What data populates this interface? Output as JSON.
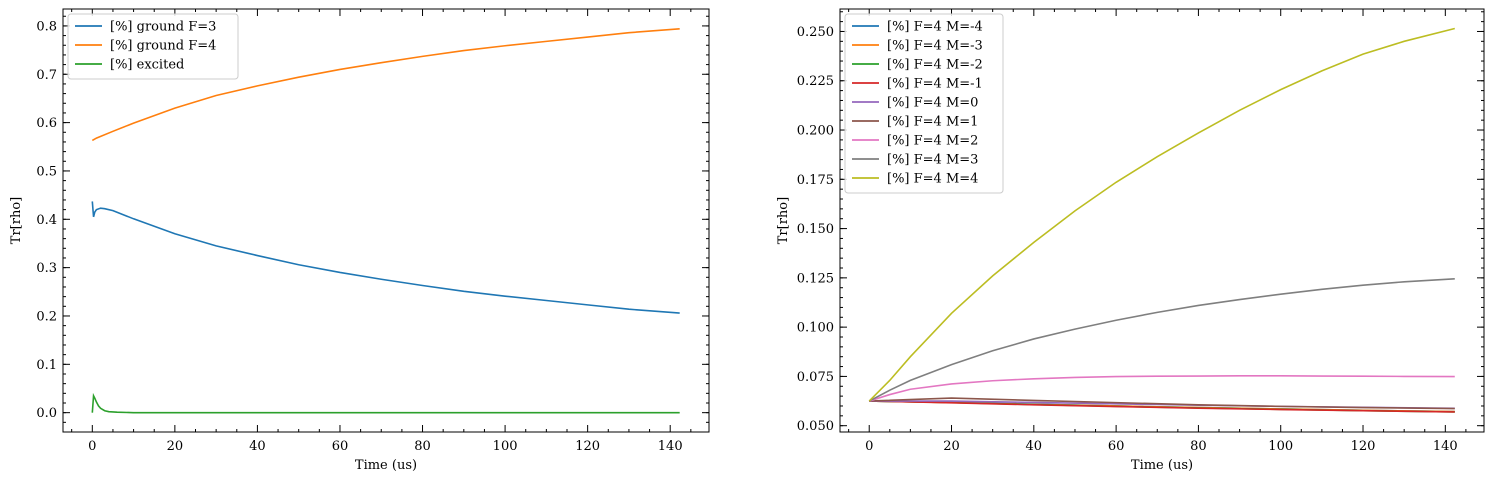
{
  "chart_data": [
    {
      "type": "line",
      "title": "",
      "xlabel": "Time (us)",
      "ylabel": "Tr[rho]",
      "xlim": [
        -7.1,
        149.4
      ],
      "ylim": [
        -0.04,
        0.835
      ],
      "xticks": [
        0,
        20,
        40,
        60,
        80,
        100,
        120,
        140
      ],
      "yticks": [
        0.0,
        0.1,
        0.2,
        0.3,
        0.4,
        0.5,
        0.6,
        0.7,
        0.8
      ],
      "ytick_labels": [
        "0.0",
        "0.1",
        "0.2",
        "0.3",
        "0.4",
        "0.5",
        "0.6",
        "0.7",
        "0.8"
      ],
      "grid": false,
      "legend_position": "top-left",
      "series": [
        {
          "name": "[%] ground  F=3",
          "color": "#1f77b4",
          "x": [
            0,
            0.3,
            0.6,
            1,
            2,
            3,
            5,
            10,
            20,
            30,
            40,
            50,
            60,
            70,
            80,
            90,
            100,
            110,
            120,
            130,
            142.3
          ],
          "y": [
            0.437,
            0.405,
            0.415,
            0.42,
            0.423,
            0.422,
            0.418,
            0.401,
            0.37,
            0.345,
            0.325,
            0.306,
            0.29,
            0.276,
            0.263,
            0.251,
            0.241,
            0.232,
            0.223,
            0.214,
            0.206
          ]
        },
        {
          "name": "[%] ground  F=4",
          "color": "#ff7f0e",
          "x": [
            0,
            1,
            5,
            10,
            20,
            30,
            40,
            50,
            60,
            70,
            80,
            90,
            100,
            110,
            120,
            130,
            142.3
          ],
          "y": [
            0.563,
            0.568,
            0.582,
            0.599,
            0.63,
            0.656,
            0.676,
            0.694,
            0.71,
            0.724,
            0.737,
            0.749,
            0.759,
            0.768,
            0.777,
            0.786,
            0.794
          ]
        },
        {
          "name": "[%] excited",
          "color": "#2ca02c",
          "x": [
            0,
            0.3,
            0.6,
            1,
            1.5,
            2,
            3,
            4,
            6,
            10,
            20,
            60,
            142.3
          ],
          "y": [
            0.0,
            0.035,
            0.03,
            0.022,
            0.014,
            0.009,
            0.004,
            0.002,
            0.001,
            0.0,
            0.0,
            0.0,
            0.0
          ]
        }
      ]
    },
    {
      "type": "line",
      "title": "",
      "xlabel": "Time (us)",
      "ylabel": "Tr[rho]",
      "xlim": [
        -7.1,
        149.4
      ],
      "ylim": [
        0.0468,
        0.2614
      ],
      "xticks": [
        0,
        20,
        40,
        60,
        80,
        100,
        120,
        140
      ],
      "yticks": [
        0.05,
        0.075,
        0.1,
        0.125,
        0.15,
        0.175,
        0.2,
        0.225,
        0.25
      ],
      "ytick_labels": [
        "0.050",
        "0.075",
        "0.100",
        "0.125",
        "0.150",
        "0.175",
        "0.200",
        "0.225",
        "0.250"
      ],
      "grid": false,
      "legend_position": "top-left",
      "series": [
        {
          "name": "[%] F=4  M=-4",
          "color": "#1f77b4",
          "x": [
            0,
            20,
            40,
            60,
            80,
            100,
            120,
            142.3
          ],
          "y": [
            0.0625,
            0.0618,
            0.0609,
            0.06,
            0.0592,
            0.0585,
            0.0578,
            0.0572
          ]
        },
        {
          "name": "[%] F=4  M=-3",
          "color": "#ff7f0e",
          "x": [
            0,
            20,
            40,
            60,
            80,
            100,
            120,
            142.3
          ],
          "y": [
            0.0625,
            0.0617,
            0.0608,
            0.06,
            0.0592,
            0.0585,
            0.0578,
            0.0572
          ]
        },
        {
          "name": "[%] F=4  M=-2",
          "color": "#2ca02c",
          "x": [
            0,
            20,
            40,
            60,
            80,
            100,
            120,
            142.3
          ],
          "y": [
            0.0625,
            0.0617,
            0.0607,
            0.0598,
            0.059,
            0.0583,
            0.0576,
            0.057
          ]
        },
        {
          "name": "[%] F=4  M=-1",
          "color": "#d62728",
          "x": [
            0,
            20,
            40,
            60,
            80,
            100,
            120,
            142.3
          ],
          "y": [
            0.0625,
            0.0616,
            0.0606,
            0.0597,
            0.0589,
            0.0582,
            0.0576,
            0.057
          ]
        },
        {
          "name": "[%] F=4  M=0",
          "color": "#9467bd",
          "x": [
            0,
            20,
            40,
            60,
            80,
            100,
            120,
            142.3
          ],
          "y": [
            0.0625,
            0.0625,
            0.0618,
            0.0611,
            0.0604,
            0.0598,
            0.0593,
            0.0588
          ]
        },
        {
          "name": "[%] F=4  M=1",
          "color": "#8c564b",
          "x": [
            0,
            20,
            40,
            60,
            80,
            100,
            120,
            142.3
          ],
          "y": [
            0.0625,
            0.064,
            0.0628,
            0.0617,
            0.0606,
            0.0598,
            0.0592,
            0.0587
          ]
        },
        {
          "name": "[%] F=4  M=2",
          "color": "#e377c2",
          "x": [
            0,
            5,
            10,
            20,
            30,
            40,
            50,
            60,
            70,
            80,
            90,
            100,
            110,
            120,
            130,
            142.3
          ],
          "y": [
            0.0625,
            0.0658,
            0.0685,
            0.0712,
            0.0728,
            0.0738,
            0.0745,
            0.0749,
            0.0751,
            0.0752,
            0.0753,
            0.0753,
            0.0752,
            0.0751,
            0.075,
            0.0749
          ]
        },
        {
          "name": "[%] F=4  M=3",
          "color": "#7f7f7f",
          "x": [
            0,
            5,
            10,
            20,
            30,
            40,
            50,
            60,
            70,
            80,
            90,
            100,
            110,
            120,
            130,
            142.3
          ],
          "y": [
            0.0625,
            0.068,
            0.073,
            0.081,
            0.088,
            0.094,
            0.099,
            0.1035,
            0.1075,
            0.111,
            0.114,
            0.1167,
            0.1192,
            0.1213,
            0.123,
            0.1245
          ]
        },
        {
          "name": "[%] F=4  M=4",
          "color": "#bcbd22",
          "x": [
            0,
            5,
            10,
            20,
            30,
            40,
            50,
            60,
            70,
            80,
            90,
            100,
            110,
            120,
            130,
            142.3
          ],
          "y": [
            0.0625,
            0.073,
            0.085,
            0.107,
            0.126,
            0.143,
            0.159,
            0.1735,
            0.1865,
            0.1985,
            0.21,
            0.2205,
            0.23,
            0.2385,
            0.245,
            0.2515
          ]
        }
      ]
    }
  ]
}
